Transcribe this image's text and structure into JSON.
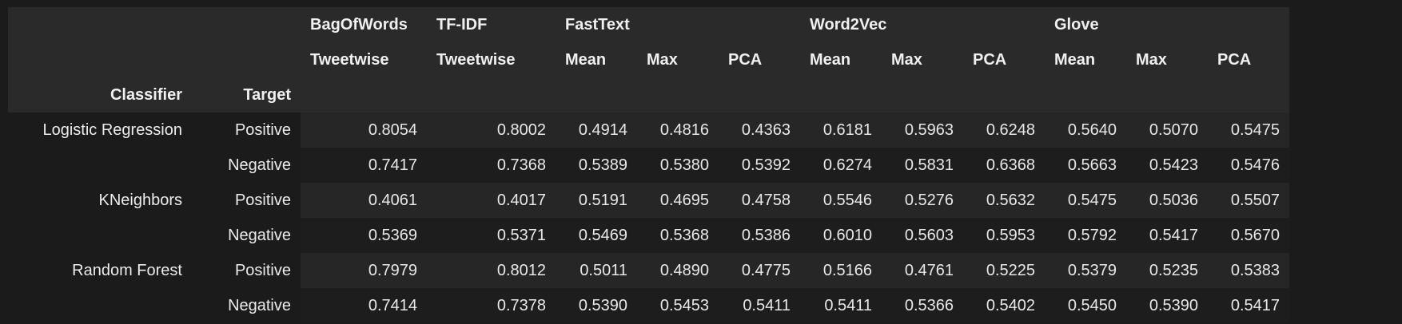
{
  "header": {
    "groups": [
      "BagOfWords",
      "TF-IDF",
      "FastText",
      "Word2Vec",
      "Glove"
    ],
    "subheaders": [
      "Tweetwise",
      "Tweetwise",
      "Mean",
      "Max",
      "PCA",
      "Mean",
      "Max",
      "PCA",
      "Mean",
      "Max",
      "PCA"
    ],
    "index_names": [
      "Classifier",
      "Target"
    ]
  },
  "rows": [
    {
      "classifier": "Logistic Regression",
      "target": "Positive",
      "values": [
        "0.8054",
        "0.8002",
        "0.4914",
        "0.4816",
        "0.4363",
        "0.6181",
        "0.5963",
        "0.6248",
        "0.5640",
        "0.5070",
        "0.5475"
      ]
    },
    {
      "classifier": "",
      "target": "Negative",
      "values": [
        "0.7417",
        "0.7368",
        "0.5389",
        "0.5380",
        "0.5392",
        "0.6274",
        "0.5831",
        "0.6368",
        "0.5663",
        "0.5423",
        "0.5476"
      ]
    },
    {
      "classifier": "KNeighbors",
      "target": "Positive",
      "values": [
        "0.4061",
        "0.4017",
        "0.5191",
        "0.4695",
        "0.4758",
        "0.5546",
        "0.5276",
        "0.5632",
        "0.5475",
        "0.5036",
        "0.5507"
      ]
    },
    {
      "classifier": "",
      "target": "Negative",
      "values": [
        "0.5369",
        "0.5371",
        "0.5469",
        "0.5368",
        "0.5386",
        "0.6010",
        "0.5603",
        "0.5953",
        "0.5792",
        "0.5417",
        "0.5670"
      ]
    },
    {
      "classifier": "Random Forest",
      "target": "Positive",
      "values": [
        "0.7979",
        "0.8012",
        "0.5011",
        "0.4890",
        "0.4775",
        "0.5166",
        "0.4761",
        "0.5225",
        "0.5379",
        "0.5235",
        "0.5383"
      ]
    },
    {
      "classifier": "",
      "target": "Negative",
      "values": [
        "0.7414",
        "0.7378",
        "0.5390",
        "0.5453",
        "0.5411",
        "0.5411",
        "0.5366",
        "0.5402",
        "0.5450",
        "0.5390",
        "0.5417"
      ]
    }
  ]
}
